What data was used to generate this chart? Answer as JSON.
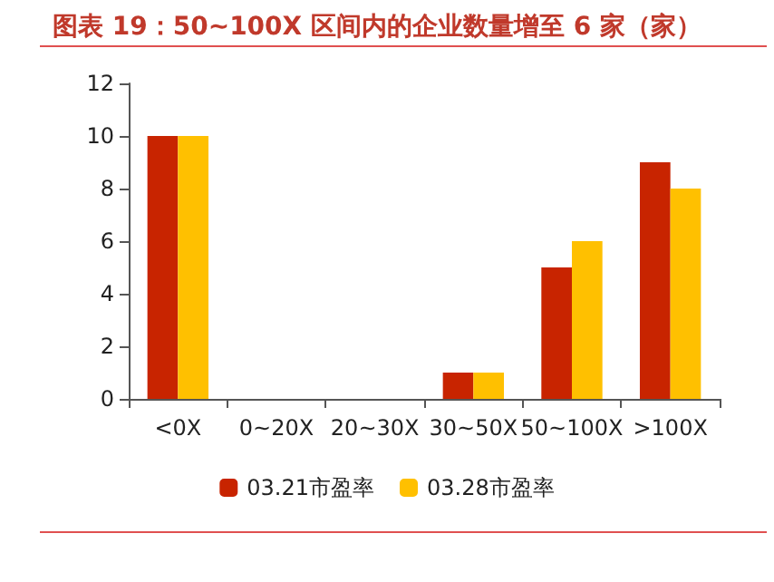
{
  "chart_data": {
    "type": "bar",
    "title": "图表 19：50~100X 区间内的企业数量增至 6 家（家）",
    "categories": [
      "<0X",
      "0~20X",
      "20~30X",
      "30~50X",
      "50~100X",
      ">100X"
    ],
    "series": [
      {
        "name": "03.21市盈率",
        "color": "#c82400",
        "values": [
          10,
          0,
          0,
          1,
          5,
          9
        ]
      },
      {
        "name": "03.28市盈率",
        "color": "#ffc000",
        "values": [
          10,
          0,
          0,
          1,
          6,
          8
        ]
      }
    ],
    "ylim": [
      0,
      12
    ],
    "yticks": [
      0,
      2,
      4,
      6,
      8,
      10,
      12
    ],
    "grid": false,
    "legend": "bottom"
  }
}
